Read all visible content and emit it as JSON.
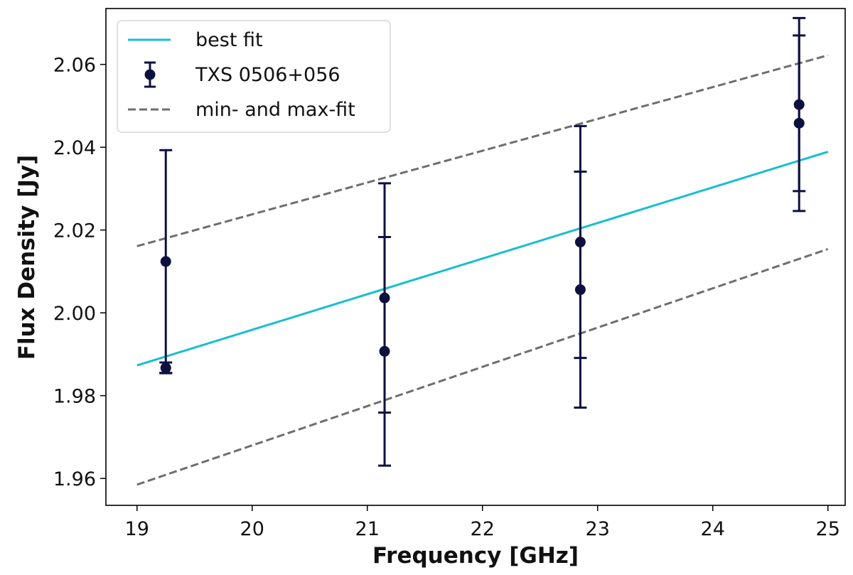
{
  "chart_data": {
    "type": "scatter",
    "title": "",
    "xlabel": "Frequency [GHz]",
    "ylabel": "Flux Density [Jy]",
    "xlim": [
      18.73,
      25.15
    ],
    "ylim": [
      1.9535,
      2.0735
    ],
    "x_ticks": [
      19,
      20,
      21,
      22,
      23,
      24,
      25
    ],
    "x_tick_labels": [
      "19",
      "20",
      "21",
      "22",
      "23",
      "24",
      "25"
    ],
    "y_ticks": [
      1.96,
      1.98,
      2.0,
      2.02,
      2.04,
      2.06
    ],
    "y_tick_labels": [
      "1.96",
      "1.98",
      "2.00",
      "2.02",
      "2.04",
      "2.06"
    ],
    "grid": false,
    "legend_position": "top-left",
    "series": [
      {
        "name": "best fit",
        "kind": "line",
        "style": "solid",
        "color": "#17becf",
        "x": [
          19.0,
          25.0
        ],
        "y": [
          1.9873,
          2.0389
        ]
      },
      {
        "name": "TXS 0506+056",
        "kind": "errorbar",
        "color": "#0d1140",
        "points": [
          {
            "x": 19.25,
            "y": 2.0124,
            "yerr": 0.0269
          },
          {
            "x": 19.25,
            "y": 1.9867,
            "yerr": 0.0013
          },
          {
            "x": 21.15,
            "y": 2.0036,
            "yerr": 0.0277
          },
          {
            "x": 21.15,
            "y": 1.9907,
            "yerr": 0.0276
          },
          {
            "x": 22.85,
            "y": 2.0171,
            "yerr": 0.028
          },
          {
            "x": 22.85,
            "y": 2.0056,
            "yerr": 0.0285
          },
          {
            "x": 24.75,
            "y": 2.0503,
            "yerr": 0.0209
          },
          {
            "x": 24.75,
            "y": 2.0458,
            "yerr": 0.0212
          }
        ]
      },
      {
        "name": "min- and max-fit",
        "kind": "line",
        "style": "dashed",
        "color": "#6e6e6e",
        "lines": [
          {
            "x": [
              19.0,
              25.0
            ],
            "y": [
              2.0161,
              2.0622
            ]
          },
          {
            "x": [
              19.0,
              25.0
            ],
            "y": [
              1.9585,
              2.0154
            ]
          }
        ]
      }
    ]
  }
}
